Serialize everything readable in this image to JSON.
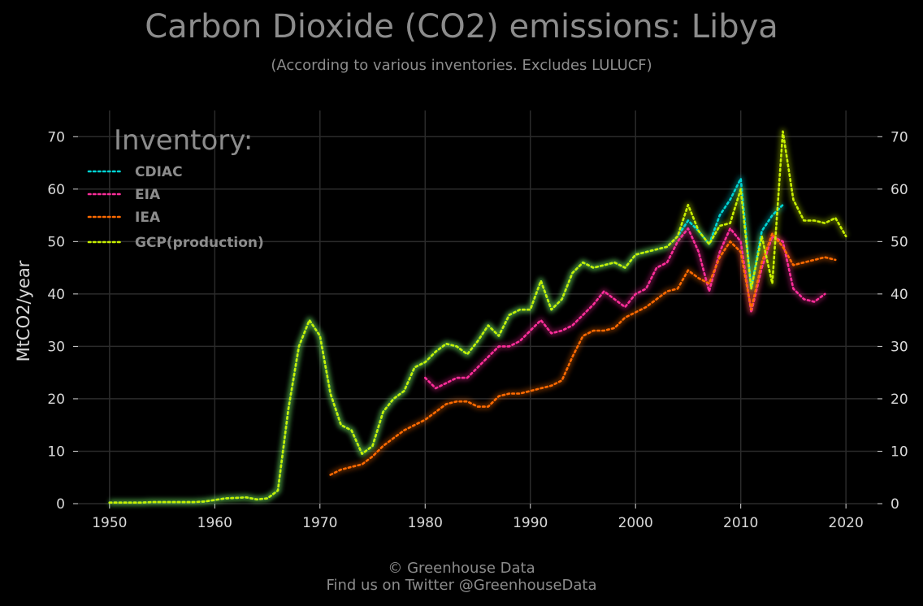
{
  "title": "Carbon Dioxide (CO2) emissions: Libya",
  "subtitle": "(According to various inventories. Excludes LULUCF)",
  "footer": {
    "line1": "© Greenhouse Data",
    "line2": "Find us on Twitter @GreenhouseData"
  },
  "colors": {
    "background": "#000000",
    "grid": "#2b2b2b",
    "text_muted": "#8c8c8c",
    "tick_text": "#d9d9d9"
  },
  "chart_data": {
    "type": "line",
    "title": "Carbon Dioxide (CO2) emissions: Libya",
    "subtitle": "(According to various inventories. Excludes LULUCF)",
    "ylabel": "MtCO2/year",
    "xlabel": "",
    "xlim": [
      1947,
      2023
    ],
    "ylim": [
      0,
      75
    ],
    "x_ticks": [
      1950,
      1960,
      1970,
      1980,
      1990,
      2000,
      2010,
      2020
    ],
    "y_ticks": [
      0,
      10,
      20,
      30,
      40,
      50,
      60,
      70
    ],
    "grid": true,
    "legend": {
      "title": "Inventory:",
      "position": "top-left"
    },
    "series": [
      {
        "name": "CDIAC",
        "color": "#00d4d4",
        "x": [
          1950,
          1951,
          1952,
          1953,
          1954,
          1955,
          1956,
          1957,
          1958,
          1959,
          1960,
          1961,
          1962,
          1963,
          1964,
          1965,
          1966,
          1967,
          1968,
          1969,
          1970,
          1971,
          1972,
          1973,
          1974,
          1975,
          1976,
          1977,
          1978,
          1979,
          1980,
          1981,
          1982,
          1983,
          1984,
          1985,
          1986,
          1987,
          1988,
          1989,
          1990,
          1991,
          1992,
          1993,
          1994,
          1995,
          1996,
          1997,
          1998,
          1999,
          2000,
          2001,
          2002,
          2003,
          2004,
          2005,
          2006,
          2007,
          2008,
          2009,
          2010,
          2011,
          2012,
          2013,
          2014
        ],
        "y": [
          0.2,
          0.2,
          0.2,
          0.2,
          0.3,
          0.3,
          0.3,
          0.3,
          0.3,
          0.4,
          0.7,
          1.0,
          1.1,
          1.2,
          0.8,
          1.0,
          2.5,
          18,
          30,
          35,
          32,
          21,
          15,
          14,
          9.5,
          11,
          17.5,
          20,
          21.5,
          26,
          27,
          29,
          30.5,
          30,
          28.5,
          31,
          34,
          32,
          36,
          37,
          37,
          42.5,
          37,
          39,
          44,
          46,
          45,
          45.5,
          46,
          45,
          47.5,
          48,
          48.5,
          49,
          51,
          54,
          52,
          49.5,
          55,
          58,
          62,
          41,
          52,
          55,
          57
        ]
      },
      {
        "name": "EIA",
        "color": "#ff2d9a",
        "x": [
          1980,
          1981,
          1982,
          1983,
          1984,
          1985,
          1986,
          1987,
          1988,
          1989,
          1990,
          1991,
          1992,
          1993,
          1994,
          1995,
          1996,
          1997,
          1998,
          1999,
          2000,
          2001,
          2002,
          2003,
          2004,
          2005,
          2006,
          2007,
          2008,
          2009,
          2010,
          2011,
          2012,
          2013,
          2014,
          2015,
          2016,
          2017,
          2018
        ],
        "y": [
          24,
          22,
          23,
          24,
          24,
          26,
          28,
          30,
          30,
          31,
          33,
          35,
          32.5,
          33,
          34,
          36,
          38,
          40.5,
          39,
          37.5,
          40,
          41,
          45,
          46,
          50,
          52.5,
          48,
          40.5,
          48,
          52.5,
          50,
          36.5,
          45,
          51,
          50,
          41,
          39,
          38.5,
          40
        ]
      },
      {
        "name": "IEA",
        "color": "#ff6a00",
        "x": [
          1971,
          1972,
          1973,
          1974,
          1975,
          1976,
          1977,
          1978,
          1979,
          1980,
          1981,
          1982,
          1983,
          1984,
          1985,
          1986,
          1987,
          1988,
          1989,
          1990,
          1991,
          1992,
          1993,
          1994,
          1995,
          1996,
          1997,
          1998,
          1999,
          2000,
          2001,
          2002,
          2003,
          2004,
          2005,
          2006,
          2007,
          2008,
          2009,
          2010,
          2011,
          2012,
          2013,
          2014,
          2015,
          2016,
          2017,
          2018,
          2019
        ],
        "y": [
          5.5,
          6.5,
          7,
          7.5,
          9,
          11,
          12.5,
          14,
          15,
          16,
          17.5,
          19,
          19.5,
          19.5,
          18.5,
          18.5,
          20.5,
          21,
          21,
          21.5,
          22,
          22.5,
          23.5,
          28,
          32,
          33,
          33,
          33.5,
          35.5,
          36.5,
          37.5,
          39,
          40.5,
          41,
          44.5,
          43,
          42,
          47,
          50,
          48,
          37,
          46,
          51.5,
          49,
          45.5,
          46,
          46.5,
          47,
          46.5
        ]
      },
      {
        "name": "GCP(production)",
        "color": "#c8f000",
        "x": [
          1950,
          1951,
          1952,
          1953,
          1954,
          1955,
          1956,
          1957,
          1958,
          1959,
          1960,
          1961,
          1962,
          1963,
          1964,
          1965,
          1966,
          1967,
          1968,
          1969,
          1970,
          1971,
          1972,
          1973,
          1974,
          1975,
          1976,
          1977,
          1978,
          1979,
          1980,
          1981,
          1982,
          1983,
          1984,
          1985,
          1986,
          1987,
          1988,
          1989,
          1990,
          1991,
          1992,
          1993,
          1994,
          1995,
          1996,
          1997,
          1998,
          1999,
          2000,
          2001,
          2002,
          2003,
          2004,
          2005,
          2006,
          2007,
          2008,
          2009,
          2010,
          2011,
          2012,
          2013,
          2014,
          2015,
          2016,
          2017,
          2018,
          2019,
          2020
        ],
        "y": [
          0.2,
          0.2,
          0.2,
          0.2,
          0.3,
          0.3,
          0.3,
          0.3,
          0.3,
          0.4,
          0.7,
          1.0,
          1.1,
          1.2,
          0.8,
          1.0,
          2.5,
          18,
          30,
          35,
          32,
          21,
          15,
          14,
          9.5,
          11,
          17.5,
          20,
          21.5,
          26,
          27,
          29,
          30.5,
          30,
          28.5,
          31,
          34,
          32,
          36,
          37,
          37,
          42.5,
          37,
          39,
          44,
          46,
          45,
          45.5,
          46,
          45,
          47.5,
          48,
          48.5,
          49,
          51,
          57,
          52,
          49.5,
          53,
          53.5,
          60,
          41,
          51,
          42,
          71,
          58,
          54,
          54,
          53.5,
          54.5,
          51
        ]
      }
    ]
  }
}
